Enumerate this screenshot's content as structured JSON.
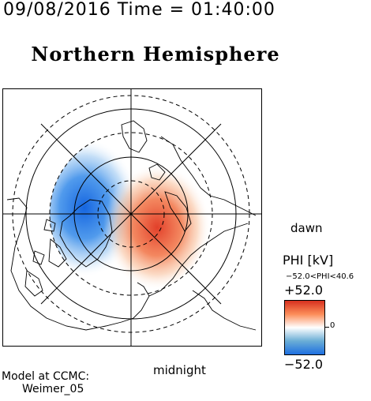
{
  "header": {
    "timestamp": "09/08/2016 Time = 01:40:00",
    "title": "Northern Hemisphere"
  },
  "map": {
    "projection": "polar stereographic, north pole centered",
    "orientation_labels": {
      "right": "dawn",
      "bottom": "midnight"
    },
    "potential_cells": [
      {
        "name": "negative-cell",
        "color": "#1e78e6",
        "sign": "negative"
      },
      {
        "name": "positive-cell",
        "color": "#e8462d",
        "sign": "positive"
      }
    ],
    "land_outline_color": "#000000",
    "grid_color": "#000000"
  },
  "colorbar": {
    "title": "PHI [kV]",
    "range_text": "−52.0<PHI<40.6",
    "max_label": "+52.0",
    "min_label": "−52.0",
    "zero_label": "0",
    "max_value": 52.0,
    "min_value": -52.0,
    "data_min": -52.0,
    "data_max": 40.6,
    "colors": {
      "top": "#d7301f",
      "upper": "#fc8d59",
      "middle": "#ffffff",
      "lower": "#6baed6",
      "bottom": "#1e6fe0"
    }
  },
  "footer": {
    "model_line1": "Model at CCMC:",
    "model_line2": "Weimer_05"
  }
}
